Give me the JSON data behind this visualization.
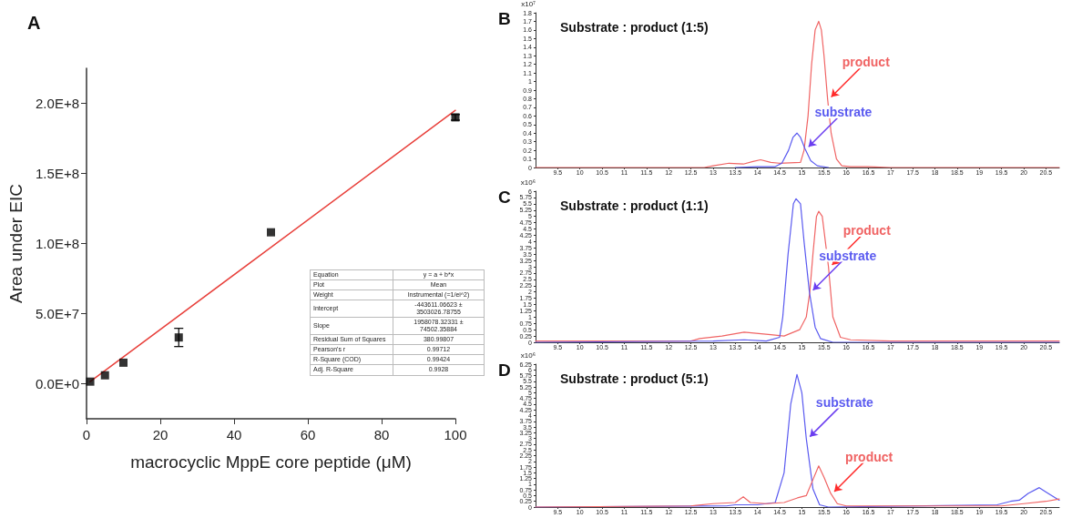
{
  "chart_data": [
    {
      "type": "scatter",
      "title": "A",
      "xlabel": "macrocyclic MppE core peptide (μM)",
      "ylabel": "Area under EIC",
      "xlim": [
        0,
        100
      ],
      "xticks": [
        0,
        20,
        40,
        60,
        80,
        100
      ],
      "ylim": [
        -25000000,
        225000000
      ],
      "yticks": [
        {
          "value": 0,
          "label": "0.0E+0"
        },
        {
          "value": 50000000,
          "label": "5.0E+7"
        },
        {
          "value": 100000000,
          "label": "1.0E+8"
        },
        {
          "value": 150000000,
          "label": "1.5E+8"
        },
        {
          "value": 200000000,
          "label": "2.0E+8"
        }
      ],
      "series": [
        {
          "type": "scatter",
          "marker": "square",
          "color": "#000000",
          "x": [
            1,
            5,
            10,
            25,
            50,
            100
          ],
          "values": [
            1500000,
            6000000,
            15000000,
            33000000,
            108000000,
            190000000
          ],
          "errors": [
            null,
            null,
            null,
            6500000,
            null,
            2000000
          ]
        },
        {
          "type": "line",
          "marker": "none",
          "color": "#e8413c",
          "x": [
            1,
            100
          ],
          "values": [
            1500000,
            195000000
          ]
        }
      ],
      "annotations": [
        "Equation",
        "y = a + b*x",
        "Plot",
        "Mean",
        "Weight",
        "Instrumental (=1/ei^2)",
        "Intercept",
        "-443611.06623 ± 3503026.78755",
        "Slope",
        "1958078.32331 ± 74502.35884",
        "Residual Sum of Squares",
        "380.99807",
        "Pearson's r",
        "0.99712",
        "R-Square (COD)",
        "0.99424",
        "Adj. R-Square",
        "0.9928"
      ]
    },
    {
      "type": "line",
      "title": "B",
      "subtitle": "Substrate : product (1:5)",
      "ylabel": "x10⁷",
      "xlim": [
        9,
        20.8
      ],
      "xticks": [
        9.5,
        10,
        10.5,
        11,
        11.5,
        12,
        12.5,
        13,
        13.5,
        14,
        14.5,
        15,
        15.5,
        16,
        16.5,
        17,
        17.5,
        18,
        18.5,
        19,
        19.5,
        20,
        20.5
      ],
      "ylim": [
        0,
        1.8
      ],
      "yticks": [
        0,
        0.1,
        0.2,
        0.3,
        0.4,
        0.5,
        0.6,
        0.7,
        0.8,
        0.9,
        1,
        1.1,
        1.2,
        1.3,
        1.4,
        1.5,
        1.6,
        1.7,
        1.8
      ],
      "marker": "none",
      "series": [
        {
          "name": "product",
          "color": "#f06464",
          "x": [
            9,
            12.8,
            13.0,
            13.36,
            13.68,
            13.9,
            14.07,
            14.3,
            14.49,
            14.97,
            15.05,
            15.14,
            15.22,
            15.3,
            15.38,
            15.44,
            15.5,
            15.58,
            15.66,
            15.78,
            15.9,
            16.1,
            16.5,
            17,
            20.8
          ],
          "values": [
            0,
            0,
            0.02,
            0.05,
            0.04,
            0.07,
            0.09,
            0.06,
            0.05,
            0.06,
            0.2,
            0.6,
            1.2,
            1.6,
            1.7,
            1.6,
            1.3,
            0.8,
            0.4,
            0.1,
            0.02,
            0.01,
            0.01,
            0,
            0
          ]
        },
        {
          "name": "substrate",
          "color": "#5a5af0",
          "x": [
            13.5,
            14.0,
            14.4,
            14.55,
            14.7,
            14.8,
            14.89,
            14.97,
            15.07,
            15.2,
            15.35,
            15.6
          ],
          "values": [
            0,
            0.01,
            0.01,
            0.05,
            0.2,
            0.35,
            0.4,
            0.35,
            0.22,
            0.08,
            0.02,
            0
          ]
        }
      ]
    },
    {
      "type": "line",
      "title": "C",
      "subtitle": "Substrate : product (1:1)",
      "ylabel": "x10⁶",
      "xlim": [
        9,
        20.8
      ],
      "xticks": [
        9.5,
        10,
        10.5,
        11,
        11.5,
        12,
        12.5,
        13,
        13.5,
        14,
        14.5,
        15,
        15.5,
        16,
        16.5,
        17,
        17.5,
        18,
        18.5,
        19,
        19.5,
        20,
        20.5
      ],
      "ylim": [
        0,
        6
      ],
      "yticks": [
        0,
        0.25,
        0.5,
        0.75,
        1,
        1.25,
        1.5,
        1.75,
        2,
        2.25,
        2.5,
        2.75,
        3,
        3.25,
        3.5,
        3.75,
        4,
        4.25,
        4.5,
        4.75,
        5,
        5.25,
        5.5,
        5.75,
        6
      ],
      "marker": "none",
      "series": [
        {
          "name": "product",
          "color": "#f06464",
          "x": [
            9,
            12.5,
            12.7,
            13.2,
            13.7,
            14.3,
            14.6,
            14.95,
            15.1,
            15.18,
            15.25,
            15.33,
            15.38,
            15.46,
            15.6,
            15.7,
            15.87,
            16.1,
            17,
            20.8
          ],
          "values": [
            0.05,
            0.05,
            0.15,
            0.25,
            0.4,
            0.3,
            0.25,
            0.5,
            1.0,
            2.0,
            3.5,
            5.0,
            5.2,
            5.0,
            3.0,
            1.0,
            0.2,
            0.1,
            0.05,
            0.05
          ]
        },
        {
          "name": "substrate",
          "color": "#5a5af0",
          "x": [
            9,
            13,
            13.7,
            14.2,
            14.5,
            14.57,
            14.69,
            14.81,
            14.87,
            14.97,
            15.05,
            15.17,
            15.3,
            15.42,
            15.7,
            20.8
          ],
          "values": [
            0,
            0.05,
            0.1,
            0.05,
            0.2,
            1.0,
            3.5,
            5.5,
            5.7,
            5.5,
            4.0,
            2.0,
            0.6,
            0.15,
            0,
            0
          ]
        }
      ]
    },
    {
      "type": "line",
      "title": "D",
      "subtitle": "Substrate : product (5:1)",
      "ylabel": "x10⁶",
      "xlim": [
        9,
        20.8
      ],
      "xticks": [
        9.5,
        10,
        10.5,
        11,
        11.5,
        12,
        12.5,
        13,
        13.5,
        14,
        14.5,
        15,
        15.5,
        16,
        16.5,
        17,
        17.5,
        18,
        18.5,
        19,
        19.5,
        20,
        20.5
      ],
      "ylim": [
        0,
        6.25
      ],
      "yticks": [
        0,
        0.25,
        0.5,
        0.75,
        1,
        1.25,
        1.5,
        1.75,
        2,
        2.25,
        2.5,
        2.75,
        3,
        3.25,
        3.5,
        3.75,
        4,
        4.25,
        4.5,
        4.75,
        5,
        5.25,
        5.5,
        5.75,
        6,
        6.25
      ],
      "marker": "none",
      "series": [
        {
          "name": "substrate",
          "color": "#5a5af0",
          "x": [
            9,
            13.3,
            13.5,
            14,
            14.4,
            14.6,
            14.75,
            14.89,
            15.0,
            15.1,
            15.25,
            15.4,
            15.6,
            19.4,
            19.7,
            19.9,
            20.1,
            20.35,
            20.55,
            20.8
          ],
          "values": [
            0,
            0.05,
            0.1,
            0.1,
            0.2,
            1.5,
            4.5,
            5.8,
            5,
            3,
            0.8,
            0.1,
            0,
            0.1,
            0.25,
            0.3,
            0.6,
            0.85,
            0.6,
            0.3
          ]
        },
        {
          "name": "product",
          "color": "#f06464",
          "x": [
            9,
            12.5,
            13,
            13.5,
            13.68,
            13.84,
            14.2,
            14.6,
            14.9,
            15.1,
            15.25,
            15.38,
            15.5,
            15.65,
            15.8,
            16,
            19.5,
            20,
            20.5,
            20.8
          ],
          "values": [
            0,
            0.05,
            0.15,
            0.2,
            0.45,
            0.2,
            0.15,
            0.2,
            0.4,
            0.5,
            1.2,
            1.8,
            1.3,
            0.6,
            0.15,
            0.05,
            0.05,
            0.15,
            0.25,
            0.35
          ]
        }
      ]
    }
  ]
}
